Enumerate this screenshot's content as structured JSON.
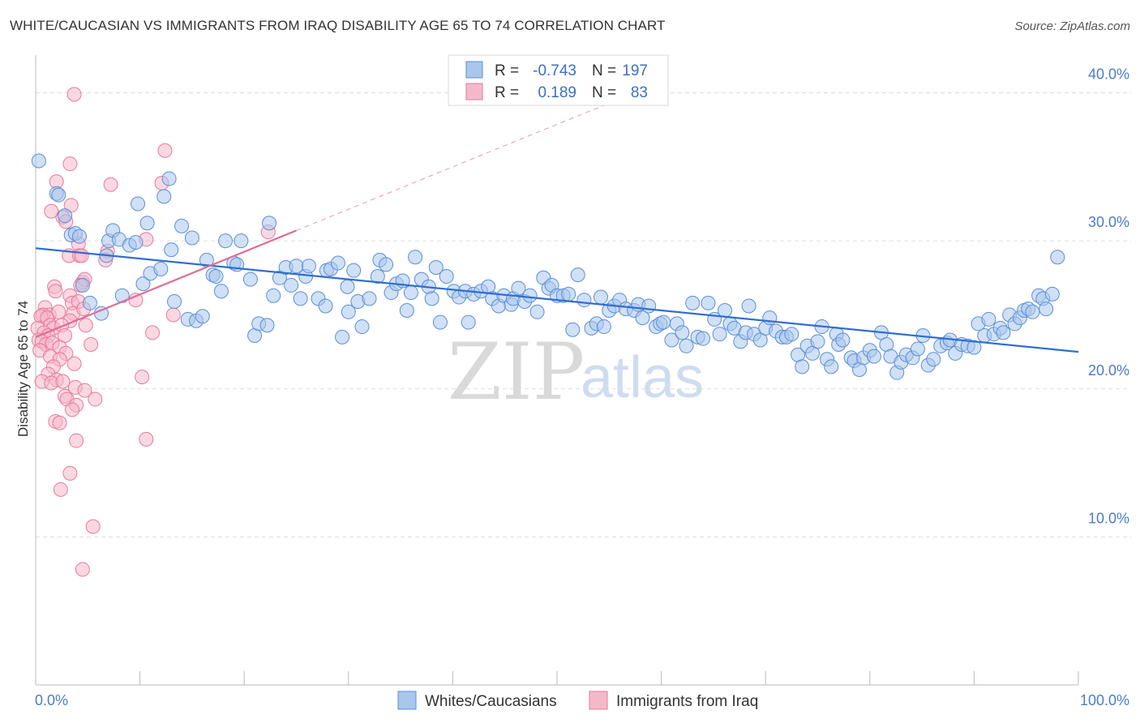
{
  "title": "WHITE/CAUCASIAN VS IMMIGRANTS FROM IRAQ DISABILITY AGE 65 TO 74 CORRELATION CHART",
  "source": "Source: ZipAtlas.com",
  "watermark": {
    "zip": "ZIP",
    "atlas": "atlas"
  },
  "legend": {
    "rows": [
      {
        "r_label": "R =",
        "r_value": "-0.743",
        "n_label": "N =",
        "n_value": "197"
      },
      {
        "r_label": "R =",
        "r_value": "0.189",
        "n_label": "N =",
        "n_value": "83"
      }
    ]
  },
  "bottom_legend": [
    "Whites/Caucasians",
    "Immigrants from Iraq"
  ],
  "colors": {
    "blue_fill": "#a9c6ec",
    "blue_stroke": "#5b8fd6",
    "blue_line": "#2f6fcf",
    "pink_fill": "#f5b8cb",
    "pink_stroke": "#e8799c",
    "pink_line": "#e06b95",
    "grid": "#dddddd",
    "tick_label": "#4a7cc6"
  },
  "chart_data": {
    "type": "scatter",
    "title": "WHITE/CAUCASIAN VS IMMIGRANTS FROM IRAQ DISABILITY AGE 65 TO 74 CORRELATION CHART",
    "xlabel": "",
    "ylabel": "Disability Age 65 to 74",
    "xlim": [
      0,
      100
    ],
    "ylim": [
      0,
      42
    ],
    "x_tick_labels": [
      "0.0%",
      "100.0%"
    ],
    "y_ticks": [
      10,
      20,
      30,
      40
    ],
    "y_tick_labels": [
      "10.0%",
      "20.0%",
      "30.0%",
      "40.0%"
    ],
    "grid": true,
    "legend_position": "top-center",
    "series": [
      {
        "name": "Whites/Caucasians",
        "color": "#a9c6ec",
        "r": -0.743,
        "n": 197,
        "trend": {
          "x": [
            0,
            100
          ],
          "y": [
            29.5,
            22.5
          ]
        },
        "points": [
          [
            0.3,
            35.4
          ],
          [
            2.0,
            33.2
          ],
          [
            2.2,
            33.1
          ],
          [
            2.8,
            31.7
          ],
          [
            3.4,
            30.4
          ],
          [
            3.8,
            30.5
          ],
          [
            4.2,
            30.3
          ],
          [
            4.5,
            27.0
          ],
          [
            5.2,
            25.8
          ],
          [
            6.3,
            25.1
          ],
          [
            6.8,
            29.0
          ],
          [
            7.0,
            30.0
          ],
          [
            7.4,
            30.7
          ],
          [
            8.0,
            30.1
          ],
          [
            8.3,
            26.3
          ],
          [
            9.0,
            29.7
          ],
          [
            9.6,
            29.9
          ],
          [
            9.8,
            32.5
          ],
          [
            10.3,
            27.1
          ],
          [
            10.7,
            31.2
          ],
          [
            11.0,
            27.8
          ],
          [
            12.0,
            28.1
          ],
          [
            12.3,
            33.0
          ],
          [
            12.8,
            34.2
          ],
          [
            13.0,
            29.4
          ],
          [
            13.3,
            25.9
          ],
          [
            14.0,
            31.0
          ],
          [
            14.6,
            24.7
          ],
          [
            15.0,
            30.2
          ],
          [
            15.4,
            24.6
          ],
          [
            16.0,
            24.9
          ],
          [
            16.4,
            28.7
          ],
          [
            17.0,
            27.7
          ],
          [
            17.3,
            27.6
          ],
          [
            17.8,
            26.6
          ],
          [
            18.2,
            30.0
          ],
          [
            19.0,
            28.5
          ],
          [
            19.3,
            28.4
          ],
          [
            19.7,
            30.0
          ],
          [
            20.6,
            27.4
          ],
          [
            21.0,
            23.6
          ],
          [
            21.4,
            24.4
          ],
          [
            22.2,
            24.3
          ],
          [
            22.4,
            31.2
          ],
          [
            22.8,
            26.3
          ],
          [
            23.4,
            27.5
          ],
          [
            24.0,
            28.2
          ],
          [
            24.5,
            27.0
          ],
          [
            25.0,
            28.3
          ],
          [
            25.4,
            26.1
          ],
          [
            25.9,
            27.6
          ],
          [
            26.2,
            28.3
          ],
          [
            27.1,
            26.1
          ],
          [
            27.8,
            25.6
          ],
          [
            27.9,
            28.0
          ],
          [
            28.3,
            28.1
          ],
          [
            29.0,
            28.5
          ],
          [
            29.4,
            23.5
          ],
          [
            29.9,
            26.9
          ],
          [
            30.0,
            25.2
          ],
          [
            30.5,
            28.0
          ],
          [
            30.9,
            25.9
          ],
          [
            31.3,
            24.2
          ],
          [
            32.0,
            26.1
          ],
          [
            32.8,
            27.6
          ],
          [
            33.0,
            28.7
          ],
          [
            33.6,
            28.4
          ],
          [
            34.1,
            26.5
          ],
          [
            34.6,
            27.1
          ],
          [
            35.2,
            27.3
          ],
          [
            35.6,
            25.3
          ],
          [
            36.0,
            26.5
          ],
          [
            36.4,
            28.9
          ],
          [
            37.0,
            27.4
          ],
          [
            37.7,
            26.9
          ],
          [
            38.0,
            26.1
          ],
          [
            38.4,
            28.2
          ],
          [
            38.8,
            24.5
          ],
          [
            39.4,
            27.6
          ],
          [
            40.1,
            26.6
          ],
          [
            40.6,
            26.2
          ],
          [
            41.2,
            26.6
          ],
          [
            41.5,
            24.5
          ],
          [
            42.0,
            26.4
          ],
          [
            42.7,
            26.6
          ],
          [
            43.4,
            26.9
          ],
          [
            43.8,
            26.1
          ],
          [
            44.4,
            25.6
          ],
          [
            44.9,
            26.3
          ],
          [
            45.6,
            25.7
          ],
          [
            45.8,
            26.1
          ],
          [
            46.3,
            26.8
          ],
          [
            46.9,
            25.9
          ],
          [
            47.4,
            26.3
          ],
          [
            48.1,
            25.2
          ],
          [
            48.7,
            27.5
          ],
          [
            49.2,
            26.8
          ],
          [
            49.5,
            27.0
          ],
          [
            50.0,
            26.3
          ],
          [
            50.6,
            26.3
          ],
          [
            51.1,
            26.4
          ],
          [
            51.5,
            24.0
          ],
          [
            52.0,
            27.7
          ],
          [
            52.6,
            26.0
          ],
          [
            53.3,
            24.1
          ],
          [
            53.8,
            24.4
          ],
          [
            54.2,
            26.2
          ],
          [
            54.5,
            24.2
          ],
          [
            55.0,
            25.3
          ],
          [
            55.5,
            25.6
          ],
          [
            56.0,
            26.0
          ],
          [
            56.6,
            25.4
          ],
          [
            57.4,
            25.3
          ],
          [
            57.8,
            25.7
          ],
          [
            58.2,
            24.8
          ],
          [
            58.8,
            25.6
          ],
          [
            59.5,
            24.2
          ],
          [
            59.9,
            24.4
          ],
          [
            60.2,
            24.5
          ],
          [
            61.0,
            23.3
          ],
          [
            61.5,
            24.4
          ],
          [
            62.0,
            23.8
          ],
          [
            62.4,
            22.9
          ],
          [
            63.0,
            25.8
          ],
          [
            63.5,
            23.5
          ],
          [
            64.0,
            23.4
          ],
          [
            64.5,
            25.8
          ],
          [
            65.1,
            24.7
          ],
          [
            65.6,
            23.7
          ],
          [
            66.1,
            25.3
          ],
          [
            66.6,
            24.4
          ],
          [
            67.0,
            24.1
          ],
          [
            67.6,
            23.2
          ],
          [
            68.1,
            23.8
          ],
          [
            68.4,
            25.6
          ],
          [
            68.9,
            23.7
          ],
          [
            69.5,
            23.3
          ],
          [
            70.0,
            24.1
          ],
          [
            70.4,
            24.8
          ],
          [
            71.0,
            23.9
          ],
          [
            71.6,
            23.5
          ],
          [
            72.0,
            23.5
          ],
          [
            72.5,
            23.7
          ],
          [
            73.1,
            22.3
          ],
          [
            73.5,
            21.5
          ],
          [
            74.0,
            22.9
          ],
          [
            74.5,
            22.4
          ],
          [
            75.0,
            23.2
          ],
          [
            75.4,
            24.2
          ],
          [
            75.9,
            22.0
          ],
          [
            76.3,
            21.5
          ],
          [
            76.8,
            23.7
          ],
          [
            77.0,
            23.0
          ],
          [
            77.4,
            23.3
          ],
          [
            78.2,
            22.1
          ],
          [
            78.5,
            21.9
          ],
          [
            79.0,
            21.3
          ],
          [
            79.4,
            22.1
          ],
          [
            80.0,
            22.6
          ],
          [
            80.4,
            22.2
          ],
          [
            81.1,
            23.8
          ],
          [
            81.6,
            23.0
          ],
          [
            82.0,
            22.2
          ],
          [
            82.6,
            21.1
          ],
          [
            83.0,
            21.8
          ],
          [
            83.5,
            22.3
          ],
          [
            84.1,
            22.1
          ],
          [
            84.6,
            22.7
          ],
          [
            85.1,
            23.6
          ],
          [
            85.6,
            21.6
          ],
          [
            86.1,
            22.0
          ],
          [
            86.8,
            22.9
          ],
          [
            87.4,
            23.1
          ],
          [
            87.7,
            23.3
          ],
          [
            88.2,
            22.4
          ],
          [
            88.8,
            23.0
          ],
          [
            89.4,
            22.9
          ],
          [
            90.0,
            22.8
          ],
          [
            90.4,
            24.4
          ],
          [
            91.0,
            23.6
          ],
          [
            91.4,
            24.7
          ],
          [
            91.9,
            23.7
          ],
          [
            92.5,
            24.1
          ],
          [
            92.8,
            23.8
          ],
          [
            93.4,
            25.0
          ],
          [
            93.9,
            24.4
          ],
          [
            94.4,
            24.8
          ],
          [
            94.8,
            25.3
          ],
          [
            95.2,
            25.4
          ],
          [
            95.6,
            25.2
          ],
          [
            96.2,
            26.3
          ],
          [
            96.6,
            26.1
          ],
          [
            96.9,
            25.4
          ],
          [
            97.5,
            26.4
          ],
          [
            98.0,
            28.9
          ]
        ]
      },
      {
        "name": "Immigrants from Iraq",
        "color": "#f5b8cb",
        "r": 0.189,
        "n": 83,
        "trend": {
          "x": [
            0,
            25
          ],
          "y": [
            23.5,
            30.7
          ]
        },
        "trend_extended": {
          "x": [
            25,
            55
          ],
          "y": [
            30.7,
            39.3
          ]
        },
        "points": [
          [
            3.7,
            39.9
          ],
          [
            12.4,
            36.1
          ],
          [
            3.3,
            35.2
          ],
          [
            2.0,
            34.0
          ],
          [
            7.2,
            33.8
          ],
          [
            12.1,
            33.9
          ],
          [
            3.4,
            32.4
          ],
          [
            2.6,
            31.6
          ],
          [
            1.5,
            32.0
          ],
          [
            2.9,
            31.3
          ],
          [
            10.6,
            30.1
          ],
          [
            22.3,
            30.6
          ],
          [
            4.1,
            29.8
          ],
          [
            6.9,
            29.3
          ],
          [
            3.2,
            29.0
          ],
          [
            4.2,
            29.0
          ],
          [
            4.4,
            29.0
          ],
          [
            6.7,
            28.7
          ],
          [
            4.5,
            27.2
          ],
          [
            4.7,
            27.4
          ],
          [
            1.8,
            26.9
          ],
          [
            1.9,
            26.6
          ],
          [
            4.3,
            27.0
          ],
          [
            9.6,
            26.0
          ],
          [
            3.3,
            26.3
          ],
          [
            3.5,
            25.8
          ],
          [
            4.1,
            25.9
          ],
          [
            0.9,
            25.5
          ],
          [
            1.3,
            25.0
          ],
          [
            2.2,
            25.2
          ],
          [
            3.6,
            25.1
          ],
          [
            4.6,
            25.4
          ],
          [
            0.7,
            25.0
          ],
          [
            0.5,
            24.9
          ],
          [
            1.1,
            24.8
          ],
          [
            3.3,
            24.6
          ],
          [
            13.2,
            25.0
          ],
          [
            1.4,
            24.3
          ],
          [
            1.7,
            24.1
          ],
          [
            2.5,
            24.3
          ],
          [
            4.8,
            24.3
          ],
          [
            0.2,
            24.1
          ],
          [
            0.8,
            23.8
          ],
          [
            1.2,
            23.6
          ],
          [
            2.8,
            23.6
          ],
          [
            11.2,
            23.8
          ],
          [
            0.3,
            23.3
          ],
          [
            0.6,
            23.2
          ],
          [
            1.0,
            23.0
          ],
          [
            1.6,
            23.1
          ],
          [
            2.3,
            22.8
          ],
          [
            5.3,
            23.0
          ],
          [
            0.4,
            22.6
          ],
          [
            2.9,
            22.4
          ],
          [
            1.4,
            22.2
          ],
          [
            2.3,
            22.0
          ],
          [
            3.7,
            21.7
          ],
          [
            1.7,
            21.5
          ],
          [
            1.2,
            21.0
          ],
          [
            2.0,
            20.6
          ],
          [
            10.2,
            20.8
          ],
          [
            0.6,
            20.5
          ],
          [
            1.5,
            20.4
          ],
          [
            2.6,
            20.5
          ],
          [
            3.8,
            20.1
          ],
          [
            4.7,
            19.9
          ],
          [
            2.8,
            19.5
          ],
          [
            3.0,
            19.3
          ],
          [
            5.7,
            19.3
          ],
          [
            3.9,
            18.9
          ],
          [
            3.5,
            18.6
          ],
          [
            1.9,
            17.8
          ],
          [
            2.3,
            17.7
          ],
          [
            3.9,
            16.5
          ],
          [
            10.6,
            16.6
          ],
          [
            3.3,
            14.3
          ],
          [
            2.4,
            13.2
          ],
          [
            5.5,
            10.7
          ],
          [
            4.5,
            7.8
          ]
        ]
      }
    ]
  }
}
